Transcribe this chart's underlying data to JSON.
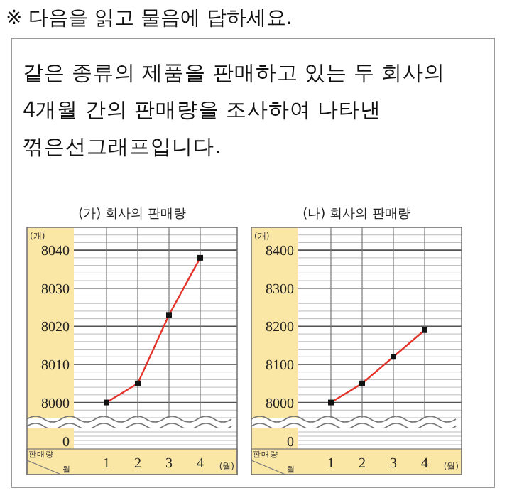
{
  "chart_data": [
    {
      "type": "other",
      "title": "※ 다음을 읽고 물음에 답하세요.",
      "annotations": [
        "같은 종류의 제품을 판매하고 있는 두 회사의",
        "4개월 간의 판매량을 조사하여 나타낸",
        "꺾은선그래프입니다."
      ]
    },
    {
      "type": "line",
      "title": "(가) 회사의 판매량",
      "ylabel": "(개)",
      "xlabel": "(월)",
      "categories": [
        "1",
        "2",
        "3",
        "4"
      ],
      "series": [
        {
          "color": "#e3332b",
          "values": [
            8000,
            8005,
            8023,
            8038
          ]
        }
      ],
      "ylim": [
        7996,
        8046
      ],
      "yticks": [
        8000,
        8010,
        8020,
        8030,
        8040
      ],
      "grid": true,
      "marker": "square",
      "line_style": "solid",
      "annotations": [
        "0",
        "판매량",
        "월"
      ]
    },
    {
      "type": "line",
      "title": "(나) 회사의 판매량",
      "ylabel": "(개)",
      "xlabel": "(월)",
      "categories": [
        "1",
        "2",
        "3",
        "4"
      ],
      "series": [
        {
          "color": "#e3332b",
          "values": [
            8000,
            8050,
            8120,
            8190
          ]
        }
      ],
      "ylim": [
        7960,
        8460
      ],
      "yticks": [
        8000,
        8100,
        8200,
        8300,
        8400
      ],
      "grid": true,
      "marker": "square",
      "line_style": "solid",
      "annotations": [
        "0",
        "판매량",
        "월"
      ]
    }
  ]
}
